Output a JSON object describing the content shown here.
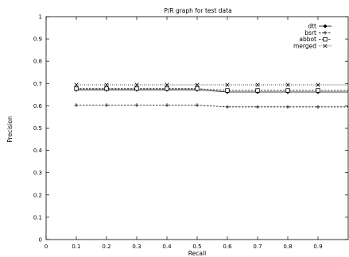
{
  "chart_data": {
    "type": "line",
    "title": "P/R graph for test data",
    "xlabel": "Recall",
    "ylabel": "Precision",
    "xlim": [
      0,
      1
    ],
    "ylim": [
      0,
      1
    ],
    "xticks": [
      "0",
      "0.1",
      "0.2",
      "0.3",
      "0.4",
      "0.5",
      "0.6",
      "0.7",
      "0.8",
      "0.9"
    ],
    "yticks": [
      "0",
      "0.1",
      "0.2",
      "0.3",
      "0.4",
      "0.5",
      "0.6",
      "0.7",
      "0.8",
      "0.9",
      "1"
    ],
    "grid": false,
    "legend_position": "top-right",
    "x": [
      0.1,
      0.2,
      0.3,
      0.4,
      0.5,
      0.6,
      0.7,
      0.8,
      0.9
    ],
    "series": [
      {
        "name": "dtt",
        "marker": "diamond",
        "line_style": "solid",
        "values": [
          0.672,
          0.672,
          0.672,
          0.672,
          0.672,
          0.662,
          0.662,
          0.662,
          0.662
        ],
        "end_value": 0.662
      },
      {
        "name": "bsrt",
        "marker": "plus",
        "line_style": "dashed",
        "values": [
          0.603,
          0.603,
          0.603,
          0.603,
          0.603,
          0.595,
          0.595,
          0.595,
          0.595
        ],
        "end_value": 0.595
      },
      {
        "name": "abbot",
        "marker": "square",
        "line_style": "dashed",
        "values": [
          0.677,
          0.677,
          0.677,
          0.677,
          0.677,
          0.669,
          0.669,
          0.669,
          0.669
        ],
        "end_value": 0.669
      },
      {
        "name": "merged",
        "marker": "x",
        "line_style": "dotted",
        "values": [
          0.694,
          0.694,
          0.694,
          0.694,
          0.694,
          0.694,
          0.694,
          0.694,
          0.694
        ],
        "end_value": 0.694
      }
    ]
  }
}
